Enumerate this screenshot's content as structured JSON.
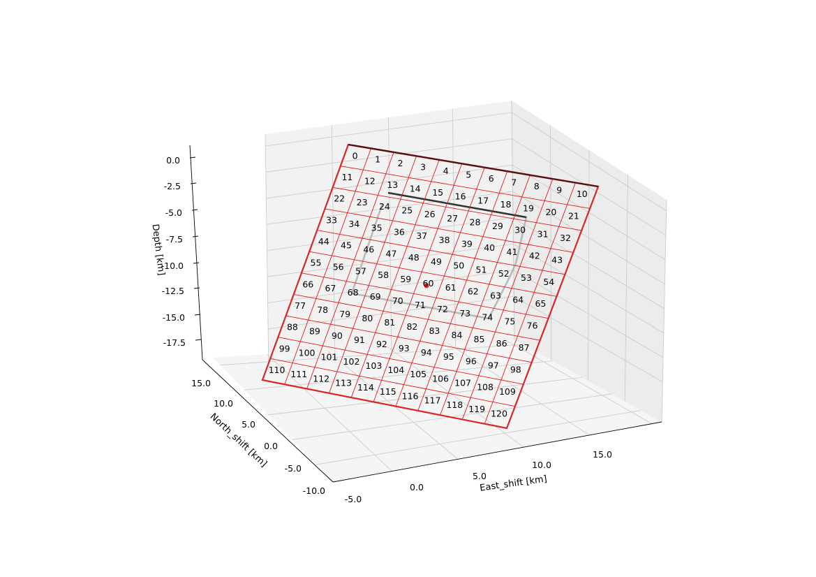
{
  "chart_data": {
    "type": "3d-fault-patches",
    "xlabel": "East_shift [km]",
    "ylabel": "North_shift [km]",
    "zlabel": "Depth [km]",
    "x_ticks": [
      "-5.0",
      "0.0",
      "5.0",
      "10.0",
      "15.0"
    ],
    "y_ticks": [
      "-10.0",
      "-5.0",
      "0.0",
      "5.0",
      "10.0",
      "15.0"
    ],
    "z_ticks": [
      "0.0",
      "-2.5",
      "-5.0",
      "-7.5",
      "-10.0",
      "-12.5",
      "-15.0",
      "-17.5"
    ],
    "xlim": [
      -5,
      20
    ],
    "ylim": [
      -10,
      17
    ],
    "zlim": [
      -19,
      1
    ],
    "grid": true,
    "fault_plane": {
      "patches_along_strike": 11,
      "patches_down_dip": 11,
      "patch_count": 121,
      "patch_labels": [
        "0",
        "1",
        "2",
        "3",
        "4",
        "5",
        "6",
        "7",
        "8",
        "9",
        "10",
        "11",
        "12",
        "13",
        "14",
        "15",
        "16",
        "17",
        "18",
        "19",
        "20",
        "21",
        "22",
        "23",
        "24",
        "25",
        "26",
        "27",
        "28",
        "29",
        "30",
        "31",
        "32",
        "33",
        "34",
        "35",
        "36",
        "37",
        "38",
        "39",
        "40",
        "41",
        "42",
        "43",
        "44",
        "45",
        "46",
        "47",
        "48",
        "49",
        "50",
        "51",
        "52",
        "53",
        "54",
        "55",
        "56",
        "57",
        "58",
        "59",
        "60",
        "61",
        "62",
        "63",
        "64",
        "65",
        "66",
        "67",
        "68",
        "69",
        "70",
        "71",
        "72",
        "73",
        "74",
        "75",
        "76",
        "77",
        "78",
        "79",
        "80",
        "81",
        "82",
        "83",
        "84",
        "85",
        "86",
        "87",
        "88",
        "89",
        "90",
        "91",
        "92",
        "93",
        "94",
        "95",
        "96",
        "97",
        "98",
        "99",
        "100",
        "101",
        "102",
        "103",
        "104",
        "105",
        "106",
        "107",
        "108",
        "109",
        "110",
        "111",
        "112",
        "113",
        "114",
        "115",
        "116",
        "117",
        "118",
        "119",
        "120"
      ],
      "outline_color": "#d62728",
      "top_edge_color": "#5a1010",
      "grid_color": "#e31a1c"
    },
    "reference_outline_color": "#333333",
    "hypocenter_color": "#d62728"
  }
}
